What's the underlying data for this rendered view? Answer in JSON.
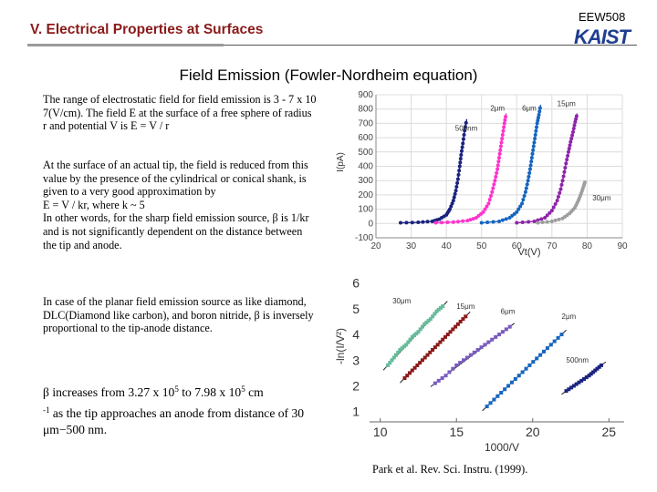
{
  "header": {
    "title": "V. Electrical Properties at Surfaces",
    "course_code": "EEW508",
    "logo_text": "KAIST"
  },
  "slide_title": "Field Emission  (Fowler-Nordheim equation)",
  "paragraphs": {
    "p1": "The range of electrostatic field for field emission is 3 - 7 x 10 7(V/cm). The field E at the surface of a free sphere of radius r and potential V is E = V / r",
    "p2": "At the surface of an actual tip, the field is reduced from this value by the presence of the cylindrical or conical shank, is given to a very good approximation by\nE = V / kr,  where k ~ 5\nIn other words, for the sharp field emission source, β is 1/kr and is not significantly dependent on  the distance between the tip and anode.",
    "p3": "In case of the planar field emission source as like diamond, DLC(Diamond like carbon), and boron nitride, β is inversely proportional to the tip-anode distance.",
    "p4": {
      "pre": "β increases from 3.27 x 10",
      "exp1": "5",
      "mid": " to 7.98 x 10",
      "exp2": "5",
      "unit": " cm",
      "exp3": "-1",
      "post": " as the tip approaches an anode from distance of 30 μm−500 nm."
    }
  },
  "citation": "Park et al. Rev. Sci. Instru. (1999).",
  "chart_data": [
    {
      "type": "scatter",
      "title": "",
      "xlabel": "Vt(V)",
      "ylabel": "I(pA)",
      "xlim": [
        20,
        90
      ],
      "ylim": [
        -100,
        900
      ],
      "xticks": [
        "20",
        "30",
        "40",
        "50",
        "60",
        "70",
        "80",
        "90"
      ],
      "yticks": [
        "-100",
        "0",
        "100",
        "200",
        "300",
        "400",
        "500",
        "600",
        "700",
        "800",
        "900"
      ],
      "grid": true,
      "series": [
        {
          "name": "500nm",
          "color": "#1a237e",
          "x": [
            27,
            32,
            36,
            38,
            40,
            41,
            42,
            42.7,
            43.3,
            43.8,
            44.2,
            44.7,
            45.2,
            45.8
          ],
          "y": [
            5,
            8,
            15,
            30,
            60,
            100,
            160,
            230,
            310,
            400,
            480,
            560,
            650,
            730
          ]
        },
        {
          "name": "2μm",
          "color": "#ff33cc",
          "x": [
            37,
            42,
            46,
            48.5,
            50.5,
            52,
            53,
            53.8,
            54.5,
            55,
            55.5,
            56,
            56.5,
            57
          ],
          "y": [
            5,
            10,
            20,
            40,
            80,
            140,
            220,
            300,
            380,
            460,
            540,
            620,
            700,
            770
          ]
        },
        {
          "name": "6μm",
          "color": "#1565c0",
          "x": [
            50,
            55,
            58,
            60,
            61.5,
            62.5,
            63.2,
            63.8,
            64.3,
            64.8,
            65.3,
            65.8,
            66.3,
            66.8
          ],
          "y": [
            5,
            15,
            40,
            80,
            140,
            220,
            300,
            380,
            460,
            540,
            620,
            700,
            760,
            830
          ]
        },
        {
          "name": "15μm",
          "color": "#8e24aa",
          "x": [
            60,
            65,
            68,
            70,
            71.5,
            72.5,
            73.3,
            74,
            74.7,
            75.3,
            76,
            76.6,
            77.2
          ],
          "y": [
            5,
            15,
            40,
            90,
            160,
            240,
            330,
            420,
            500,
            570,
            640,
            710,
            770
          ]
        },
        {
          "name": "30μm",
          "color": "#9e9e9e",
          "x": [
            66,
            70,
            73,
            75,
            76.5,
            77.5,
            78.3,
            79,
            79.5
          ],
          "y": [
            5,
            15,
            35,
            70,
            110,
            160,
            210,
            260,
            300
          ]
        }
      ],
      "labels": [
        "500nm",
        "2μm",
        "6μm",
        "15μm",
        "30μm"
      ]
    },
    {
      "type": "scatter",
      "title": "",
      "xlabel": "1000/V",
      "ylabel": "-ln(I/V²)",
      "xlim": [
        9,
        26
      ],
      "ylim": [
        1,
        6
      ],
      "xticks": [
        "10",
        "15",
        "20",
        "25"
      ],
      "yticks": [
        "1",
        "2",
        "3",
        "4",
        "5",
        "6"
      ],
      "grid": false,
      "series": [
        {
          "name": "30μm",
          "color": "#66bb9a",
          "x": [
            10.5,
            10.9,
            11.3,
            11.7,
            12.1,
            12.5,
            12.9,
            13.3,
            13.7,
            14.1
          ],
          "y": [
            2.8,
            3.1,
            3.4,
            3.6,
            3.9,
            4.1,
            4.4,
            4.6,
            4.9,
            5.1
          ]
        },
        {
          "name": "15μm",
          "color": "#8b1a1a",
          "x": [
            11.6,
            12.1,
            12.6,
            13.1,
            13.6,
            14.1,
            14.6,
            15.1,
            15.6
          ],
          "y": [
            2.3,
            2.6,
            2.9,
            3.2,
            3.5,
            3.8,
            4.1,
            4.4,
            4.7
          ]
        },
        {
          "name": "6μm",
          "color": "#7b5bbf",
          "x": [
            13.6,
            14.3,
            15,
            15.7,
            16.4,
            17.1,
            17.8,
            18.5
          ],
          "y": [
            2.1,
            2.4,
            2.8,
            3.1,
            3.4,
            3.7,
            4.0,
            4.3
          ]
        },
        {
          "name": "2μm",
          "color": "#1565c0",
          "x": [
            17,
            17.7,
            18.4,
            19.1,
            19.8,
            20.5,
            21.2,
            21.9
          ],
          "y": [
            1.2,
            1.6,
            2.0,
            2.4,
            2.8,
            3.2,
            3.6,
            4.0
          ]
        },
        {
          "name": "500nm",
          "color": "#1a237e",
          "x": [
            22.2,
            22.7,
            23.2,
            23.7,
            24.1,
            24.5
          ],
          "y": [
            1.8,
            2.0,
            2.2,
            2.4,
            2.6,
            2.8
          ]
        }
      ],
      "labels": [
        "30μm",
        "15μm",
        "6μm",
        "2μm",
        "500nm"
      ]
    }
  ]
}
